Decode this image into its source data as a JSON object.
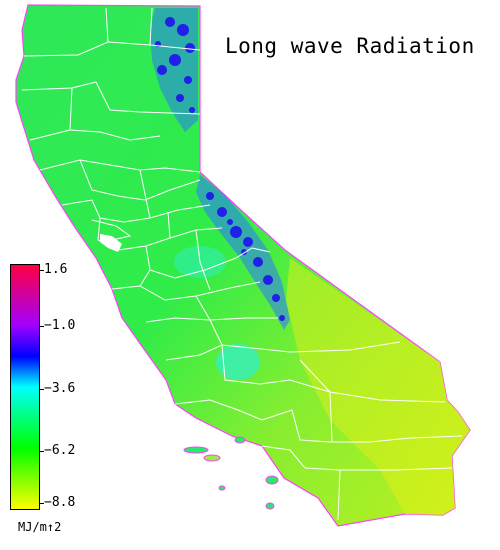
{
  "title": "Long wave Radiation",
  "legend": {
    "ticks": [
      {
        "value": 1.6,
        "label": "1.6"
      },
      {
        "value": -1.0,
        "label": "−1.0"
      },
      {
        "value": -3.6,
        "label": "−3.6"
      },
      {
        "value": -6.2,
        "label": "−6.2"
      },
      {
        "value": -8.8,
        "label": "−8.8"
      }
    ],
    "min": -8.8,
    "max": 1.6,
    "unit": "MJ/m↑2",
    "colors": {
      "at_1.6": "#ff0040",
      "at_-1.0": "#a000ff",
      "at_-2.3": "#0000ff",
      "at_-3.6": "#00ffff",
      "at_-6.2": "#00ff00",
      "at_-8.8": "#ffff00"
    }
  },
  "map": {
    "region": "California",
    "boundaries": "county",
    "dominant_color": "#22ee55",
    "highlight_color": "#2020ee"
  }
}
